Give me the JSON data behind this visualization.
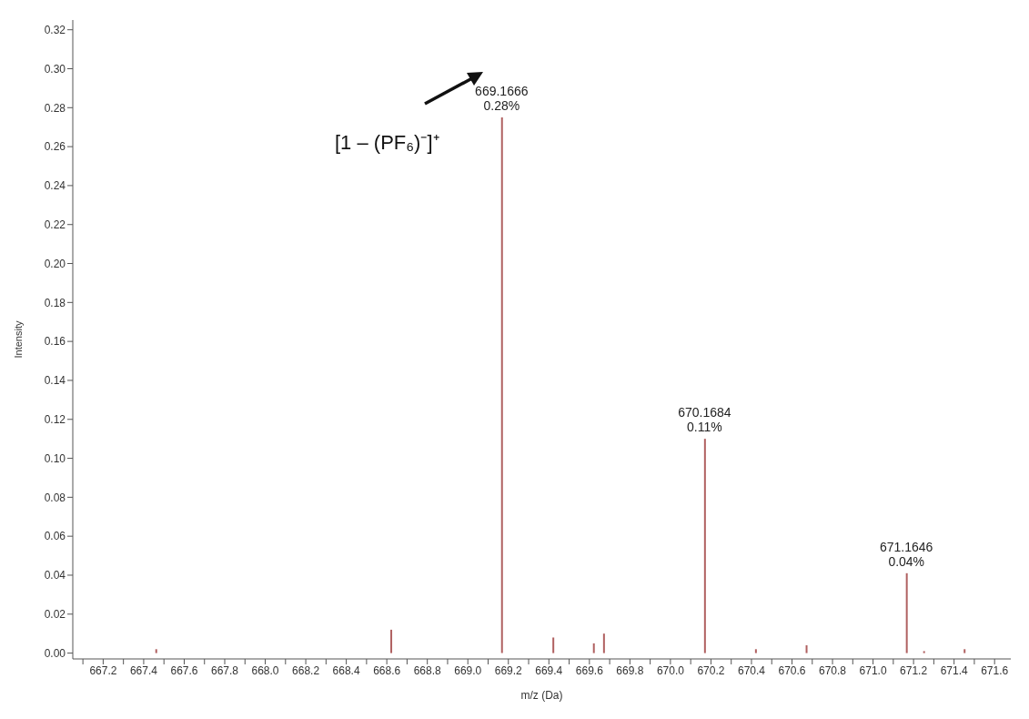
{
  "chart_data": {
    "type": "bar",
    "xlabel": "m/z (Da)",
    "ylabel": "Intensity",
    "x": [
      667.46,
      668.62,
      669.1666,
      669.42,
      669.62,
      669.67,
      670.1684,
      670.42,
      670.67,
      671.1646,
      671.25,
      671.45
    ],
    "values": [
      0.002,
      0.012,
      0.275,
      0.008,
      0.005,
      0.01,
      0.11,
      0.002,
      0.004,
      0.041,
      0.001,
      0.002
    ],
    "color": "#b06060",
    "xlim": [
      667.05,
      671.68
    ],
    "xticks": [
      {
        "value": 667.1,
        "label": null
      },
      667.2,
      {
        "value": 667.3,
        "label": null
      },
      667.4,
      {
        "value": 667.5,
        "label": null
      },
      667.6,
      {
        "value": 667.7,
        "label": null
      },
      667.8,
      {
        "value": 667.9,
        "label": null
      },
      {
        "value": 668,
        "label": "668.0"
      },
      {
        "value": 668.1,
        "label": null
      },
      668.2,
      {
        "value": 668.3,
        "label": null
      },
      668.4,
      {
        "value": 668.5,
        "label": null
      },
      668.6,
      {
        "value": 668.7,
        "label": null
      },
      668.8,
      {
        "value": 668.9,
        "label": null
      },
      {
        "value": 669,
        "label": "669.0"
      },
      {
        "value": 669.1,
        "label": null
      },
      669.2,
      {
        "value": 669.3,
        "label": null
      },
      669.4,
      {
        "value": 669.5,
        "label": null
      },
      669.6,
      {
        "value": 669.7,
        "label": null
      },
      669.8,
      {
        "value": 669.9,
        "label": null
      },
      {
        "value": 670,
        "label": "670.0"
      },
      {
        "value": 670.1,
        "label": null
      },
      670.2,
      {
        "value": 670.3,
        "label": null
      },
      670.4,
      {
        "value": 670.5,
        "label": null
      },
      670.6,
      {
        "value": 670.7,
        "label": null
      },
      670.8,
      {
        "value": 670.9,
        "label": null
      },
      {
        "value": 671,
        "label": "671.0"
      },
      {
        "value": 671.1,
        "label": null
      },
      671.2,
      {
        "value": 671.3,
        "label": null
      },
      671.4,
      {
        "value": 671.5,
        "label": null
      },
      671.6
    ],
    "ylim": [
      -0.003,
      0.325
    ],
    "yticks": [
      {
        "value": 0,
        "label": "0.00"
      },
      0.02,
      0.04,
      0.06,
      0.08,
      {
        "value": 0.1,
        "label": "0.10"
      },
      0.12,
      0.14,
      0.16,
      0.18,
      {
        "value": 0.2,
        "label": "0.20"
      },
      0.22,
      0.24,
      0.26,
      0.28,
      {
        "value": 0.3,
        "label": "0.30"
      },
      0.32
    ],
    "annotations": [
      {
        "text": "669.1666\n0.28%",
        "x": 669.1666,
        "y": 0.275
      },
      {
        "text": "670.1684\n0.11%",
        "x": 670.1684,
        "y": 0.11
      },
      {
        "text": "671.1646\n0.04%",
        "x": 671.1646,
        "y": 0.041
      },
      "[1 – (PF₆)⁻]⁺"
    ]
  }
}
